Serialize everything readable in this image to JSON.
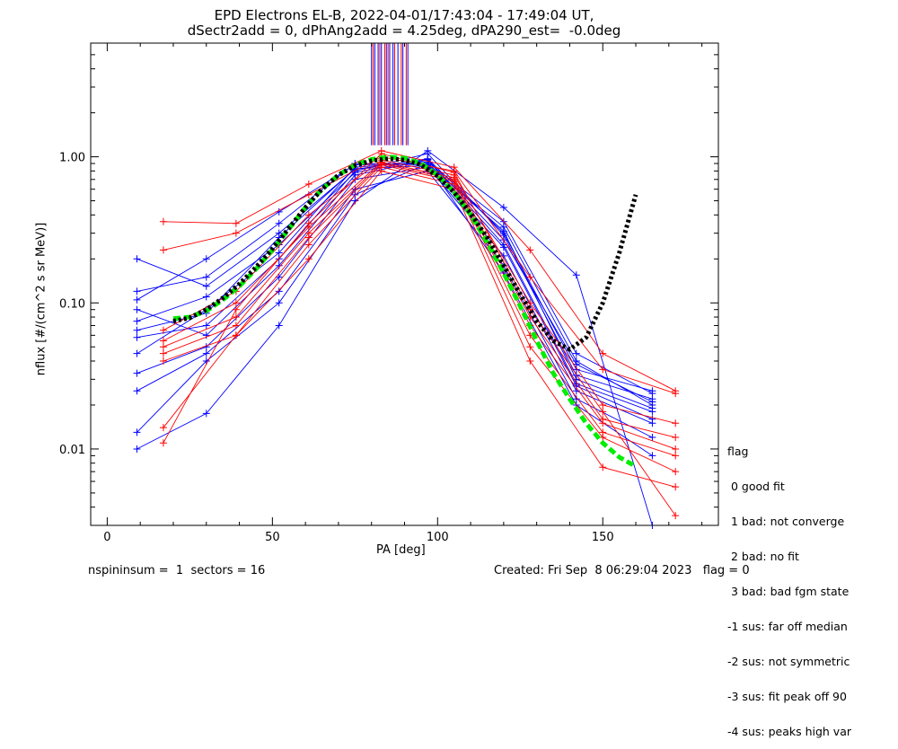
{
  "header": {
    "title_line1": "EPD Electrons EL-B, 2022-04-01/17:43:04 - 17:49:04 UT,",
    "title_line2": "dSectr2add = 0, dPhAng2add = 4.25deg, dPA290_est=  -0.0deg"
  },
  "footer": {
    "left": "nspininsum =  1  sectors = 16",
    "right": "Created: Fri Sep  8 06:29:04 2023   flag = 0"
  },
  "legend": {
    "title": "flag",
    "items": [
      " 0 good fit",
      " 1 bad: not converge",
      " 2 bad: no fit",
      " 3 bad: bad fgm state",
      "-1 sus: far off median",
      "-2 sus: not symmetric",
      "-3 sus: fit peak off 90",
      "-4 sus: peaks high var"
    ]
  },
  "chart_data": {
    "type": "line",
    "xlabel": "PA [deg]",
    "ylabel": "nflux [#/(cm^2 s sr MeV)]",
    "xlim": [
      -5,
      185
    ],
    "ylim": [
      0.003,
      6.0
    ],
    "ylog": true,
    "x_ticks": [
      0,
      50,
      100,
      150
    ],
    "x_tick_labels": [
      "0",
      "50",
      "100",
      "150"
    ],
    "y_ticks": [
      0.01,
      0.1,
      1.0
    ],
    "y_tick_labels": [
      "0.01",
      "0.10",
      "1.00"
    ],
    "colors": {
      "blue": "#0000ff",
      "red": "#ff0000",
      "green": "#00ee00",
      "black": "#000000"
    },
    "series": [
      {
        "color": "blue",
        "x": [
          9,
          30,
          52,
          75,
          97,
          120,
          142,
          165
        ],
        "y": [
          0.2,
          0.13,
          0.3,
          0.82,
          0.97,
          0.3,
          0.035,
          0.025
        ]
      },
      {
        "color": "blue",
        "x": [
          9,
          30,
          52,
          75,
          97,
          120,
          142,
          165
        ],
        "y": [
          0.12,
          0.15,
          0.35,
          0.9,
          0.88,
          0.33,
          0.04,
          0.02
        ]
      },
      {
        "color": "blue",
        "x": [
          9,
          30,
          52,
          75,
          97,
          120,
          142,
          165
        ],
        "y": [
          0.09,
          0.06,
          0.18,
          0.75,
          0.95,
          0.25,
          0.028,
          0.018
        ]
      },
      {
        "color": "blue",
        "x": [
          9,
          30,
          52,
          75,
          97,
          120,
          142,
          165
        ],
        "y": [
          0.058,
          0.07,
          0.2,
          0.8,
          1.05,
          0.29,
          0.032,
          0.022
        ]
      },
      {
        "color": "blue",
        "x": [
          9,
          30,
          52,
          75,
          97,
          120,
          142,
          165
        ],
        "y": [
          0.045,
          0.09,
          0.22,
          0.85,
          0.92,
          0.36,
          0.045,
          0.024
        ]
      },
      {
        "color": "blue",
        "x": [
          9,
          30,
          52,
          75,
          97,
          120,
          142,
          165
        ],
        "y": [
          0.033,
          0.05,
          0.15,
          0.7,
          0.85,
          0.21,
          0.025,
          0.015
        ]
      },
      {
        "color": "blue",
        "x": [
          9,
          30,
          52,
          75,
          97,
          120,
          142,
          165
        ],
        "y": [
          0.025,
          0.045,
          0.12,
          0.6,
          0.8,
          0.18,
          0.022,
          0.012
        ]
      },
      {
        "color": "blue",
        "x": [
          9,
          30,
          52,
          75,
          97,
          120,
          142,
          165
        ],
        "y": [
          0.013,
          0.04,
          0.1,
          0.55,
          0.9,
          0.16,
          0.02,
          0.009
        ]
      },
      {
        "color": "blue",
        "x": [
          9,
          30,
          52,
          75,
          97,
          120,
          142,
          165
        ],
        "y": [
          0.01,
          0.0175,
          0.07,
          0.5,
          1.1,
          0.45,
          0.155,
          0.003
        ]
      },
      {
        "color": "blue",
        "x": [
          9,
          30,
          52,
          75,
          97,
          120,
          142,
          165
        ],
        "y": [
          0.075,
          0.11,
          0.25,
          0.78,
          0.96,
          0.27,
          0.038,
          0.021
        ]
      },
      {
        "color": "blue",
        "x": [
          9,
          30,
          52,
          75,
          97,
          120,
          142,
          165
        ],
        "y": [
          0.105,
          0.2,
          0.42,
          0.88,
          0.9,
          0.31,
          0.03,
          0.019
        ]
      },
      {
        "color": "blue",
        "x": [
          9,
          30,
          52,
          75,
          97,
          120,
          142,
          165
        ],
        "y": [
          0.065,
          0.085,
          0.28,
          0.83,
          0.87,
          0.24,
          0.027,
          0.016
        ]
      },
      {
        "color": "red",
        "x": [
          17,
          39,
          61,
          83,
          105,
          128,
          150,
          172
        ],
        "y": [
          0.36,
          0.35,
          0.65,
          1.1,
          0.85,
          0.23,
          0.045,
          0.025
        ]
      },
      {
        "color": "red",
        "x": [
          17,
          39,
          61,
          83,
          105,
          128,
          150,
          172
        ],
        "y": [
          0.23,
          0.3,
          0.55,
          1.0,
          0.8,
          0.15,
          0.035,
          0.024
        ]
      },
      {
        "color": "red",
        "x": [
          17,
          39,
          61,
          83,
          105,
          128,
          150,
          172
        ],
        "y": [
          0.065,
          0.12,
          0.4,
          0.95,
          0.75,
          0.1,
          0.02,
          0.015
        ]
      },
      {
        "color": "red",
        "x": [
          17,
          39,
          61,
          83,
          105,
          128,
          150,
          172
        ],
        "y": [
          0.05,
          0.08,
          0.3,
          0.9,
          0.7,
          0.07,
          0.015,
          0.01
        ]
      },
      {
        "color": "red",
        "x": [
          17,
          39,
          61,
          83,
          105,
          128,
          150,
          172
        ],
        "y": [
          0.04,
          0.06,
          0.25,
          0.85,
          0.65,
          0.05,
          0.012,
          0.007
        ]
      },
      {
        "color": "red",
        "x": [
          17,
          39,
          61,
          83,
          105,
          128,
          150,
          172
        ],
        "y": [
          0.014,
          0.06,
          0.2,
          0.8,
          0.6,
          0.04,
          0.0075,
          0.0055
        ]
      },
      {
        "color": "red",
        "x": [
          17,
          39,
          61,
          83,
          105,
          128,
          150,
          172
        ],
        "y": [
          0.011,
          0.09,
          0.35,
          1.05,
          0.78,
          0.09,
          0.018,
          0.0035
        ]
      },
      {
        "color": "red",
        "x": [
          17,
          39,
          61,
          83,
          105,
          128,
          150,
          172
        ],
        "y": [
          0.055,
          0.1,
          0.33,
          0.92,
          0.72,
          0.08,
          0.016,
          0.012
        ]
      },
      {
        "color": "red",
        "x": [
          17,
          39,
          61,
          83,
          105,
          128,
          150,
          172
        ],
        "y": [
          0.045,
          0.07,
          0.28,
          0.88,
          0.68,
          0.06,
          0.013,
          0.009
        ]
      }
    ],
    "vertical_markers": {
      "y_bottom": 1.2,
      "y_top": 6.0,
      "blue_x": [
        80.0,
        81.0,
        82.0,
        83.0,
        84.5,
        85.5,
        86.5,
        88.0,
        89.5,
        91.0
      ],
      "red_x": [
        80.5,
        82.5,
        84.0,
        85.0,
        87.0,
        89.0,
        90.5
      ]
    },
    "fits": [
      {
        "name": "",
        "color": "green",
        "style": "dashed",
        "x": [
          20,
          25,
          30,
          35,
          40,
          45,
          50,
          55,
          60,
          65,
          70,
          75,
          80,
          85,
          90,
          95,
          100,
          105,
          110,
          115,
          120,
          125,
          130,
          135,
          140,
          145,
          150,
          155,
          160
        ],
        "y": [
          0.078,
          0.08,
          0.088,
          0.105,
          0.13,
          0.17,
          0.23,
          0.32,
          0.45,
          0.6,
          0.75,
          0.88,
          0.96,
          1.0,
          0.98,
          0.9,
          0.75,
          0.57,
          0.4,
          0.26,
          0.16,
          0.095,
          0.055,
          0.033,
          0.022,
          0.015,
          0.011,
          0.0088,
          0.0076
        ]
      },
      {
        "name": "",
        "color": "black",
        "style": "dotted",
        "x": [
          20,
          25,
          30,
          35,
          40,
          45,
          50,
          55,
          60,
          65,
          70,
          75,
          80,
          85,
          90,
          95,
          100,
          105,
          110,
          115,
          120,
          125,
          130,
          135,
          140,
          145,
          150,
          155,
          160
        ],
        "y": [
          0.075,
          0.079,
          0.09,
          0.108,
          0.135,
          0.175,
          0.235,
          0.325,
          0.45,
          0.6,
          0.75,
          0.87,
          0.94,
          0.97,
          0.95,
          0.88,
          0.74,
          0.57,
          0.41,
          0.28,
          0.18,
          0.115,
          0.075,
          0.055,
          0.048,
          0.058,
          0.1,
          0.22,
          0.55
        ]
      }
    ]
  }
}
